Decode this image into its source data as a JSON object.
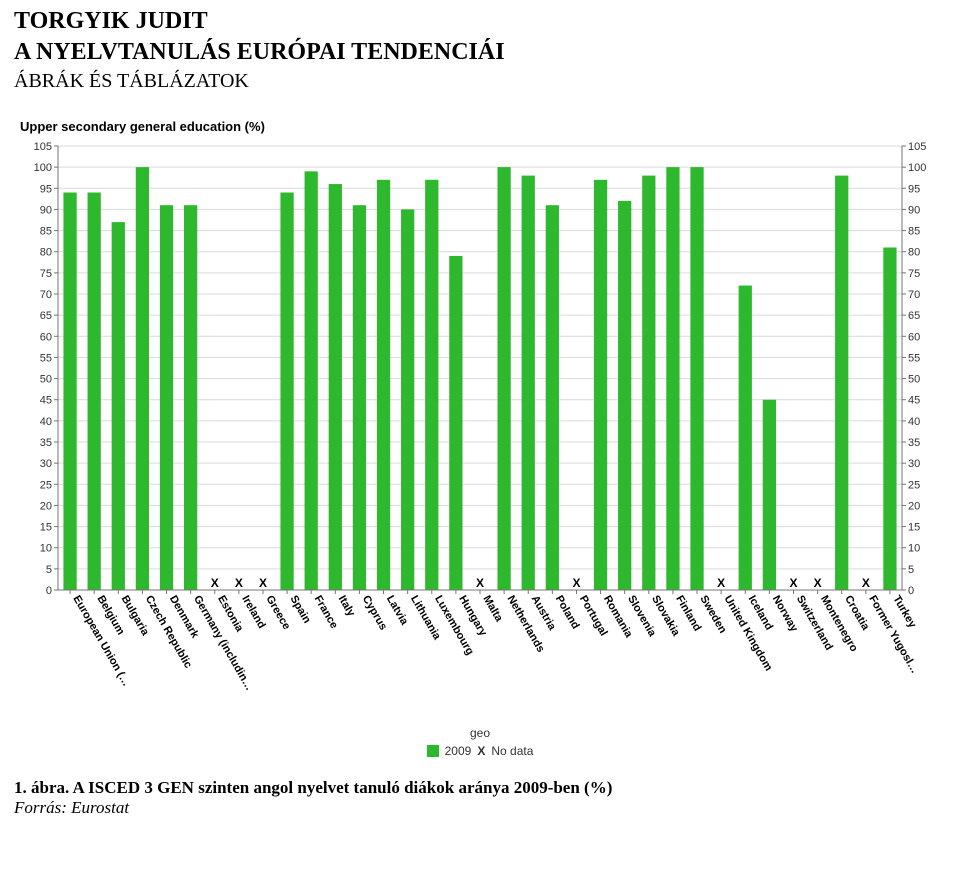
{
  "header": {
    "author": "TORGYIK JUDIT",
    "title": "A NYELVTANULÁS EURÓPAI TENDENCIÁI",
    "subtitle": "ÁBRÁK ÉS TÁBLÁZATOK"
  },
  "chart": {
    "type": "bar",
    "title": "Upper secondary general education (%)",
    "ylim": [
      0,
      105
    ],
    "ytick_step": 5,
    "bar_color": "#2eb82e",
    "grid_color": "#d9d9d9",
    "axis_color": "#757575",
    "tick_label_color": "#333333",
    "bg_color": "#ffffff",
    "no_data_symbol": "X",
    "no_data_label": "No data",
    "series_label": "2009",
    "legend_title": "geo",
    "bar_width_ratio": 0.55,
    "categories": [
      {
        "label": "European Union (…",
        "value": 94,
        "no_data": false
      },
      {
        "label": "Belgium",
        "value": 94,
        "no_data": false
      },
      {
        "label": "Bulgaria",
        "value": 87,
        "no_data": false
      },
      {
        "label": "Czech Republic",
        "value": 100,
        "no_data": false
      },
      {
        "label": "Denmark",
        "value": 91,
        "no_data": false
      },
      {
        "label": "Germany (includin…",
        "value": 91,
        "no_data": false
      },
      {
        "label": "Estonia",
        "value": 0,
        "no_data": true
      },
      {
        "label": "Ireland",
        "value": 0,
        "no_data": true
      },
      {
        "label": "Greece",
        "value": 0,
        "no_data": true
      },
      {
        "label": "Spain",
        "value": 94,
        "no_data": false
      },
      {
        "label": "France",
        "value": 99,
        "no_data": false
      },
      {
        "label": "Italy",
        "value": 96,
        "no_data": false
      },
      {
        "label": "Cyprus",
        "value": 91,
        "no_data": false
      },
      {
        "label": "Latvia",
        "value": 97,
        "no_data": false
      },
      {
        "label": "Lithuania",
        "value": 90,
        "no_data": false
      },
      {
        "label": "Luxembourg",
        "value": 97,
        "no_data": false
      },
      {
        "label": "Hungary",
        "value": 79,
        "no_data": false
      },
      {
        "label": "Malta",
        "value": 0,
        "no_data": true
      },
      {
        "label": "Netherlands",
        "value": 100,
        "no_data": false
      },
      {
        "label": "Austria",
        "value": 98,
        "no_data": false
      },
      {
        "label": "Poland",
        "value": 91,
        "no_data": false
      },
      {
        "label": "Portugal",
        "value": 0,
        "no_data": true
      },
      {
        "label": "Romania",
        "value": 97,
        "no_data": false
      },
      {
        "label": "Slovenia",
        "value": 92,
        "no_data": false
      },
      {
        "label": "Slovakia",
        "value": 98,
        "no_data": false
      },
      {
        "label": "Finland",
        "value": 100,
        "no_data": false
      },
      {
        "label": "Sweden",
        "value": 100,
        "no_data": false
      },
      {
        "label": "United Kingdom",
        "value": 0,
        "no_data": true
      },
      {
        "label": "Iceland",
        "value": 72,
        "no_data": false
      },
      {
        "label": "Norway",
        "value": 45,
        "no_data": false
      },
      {
        "label": "Switzerland",
        "value": 0,
        "no_data": true
      },
      {
        "label": "Montenegro",
        "value": 0,
        "no_data": true
      },
      {
        "label": "Croatia",
        "value": 98,
        "no_data": false
      },
      {
        "label": "Former Yugosl…",
        "value": 0,
        "no_data": true
      },
      {
        "label": "Turkey",
        "value": 81,
        "no_data": false
      }
    ]
  },
  "caption": {
    "text": "1. ábra. A ISCED 3 GEN szinten angol nyelvet tanuló diákok aránya 2009-ben (%)",
    "source": "Forrás: Eurostat"
  }
}
